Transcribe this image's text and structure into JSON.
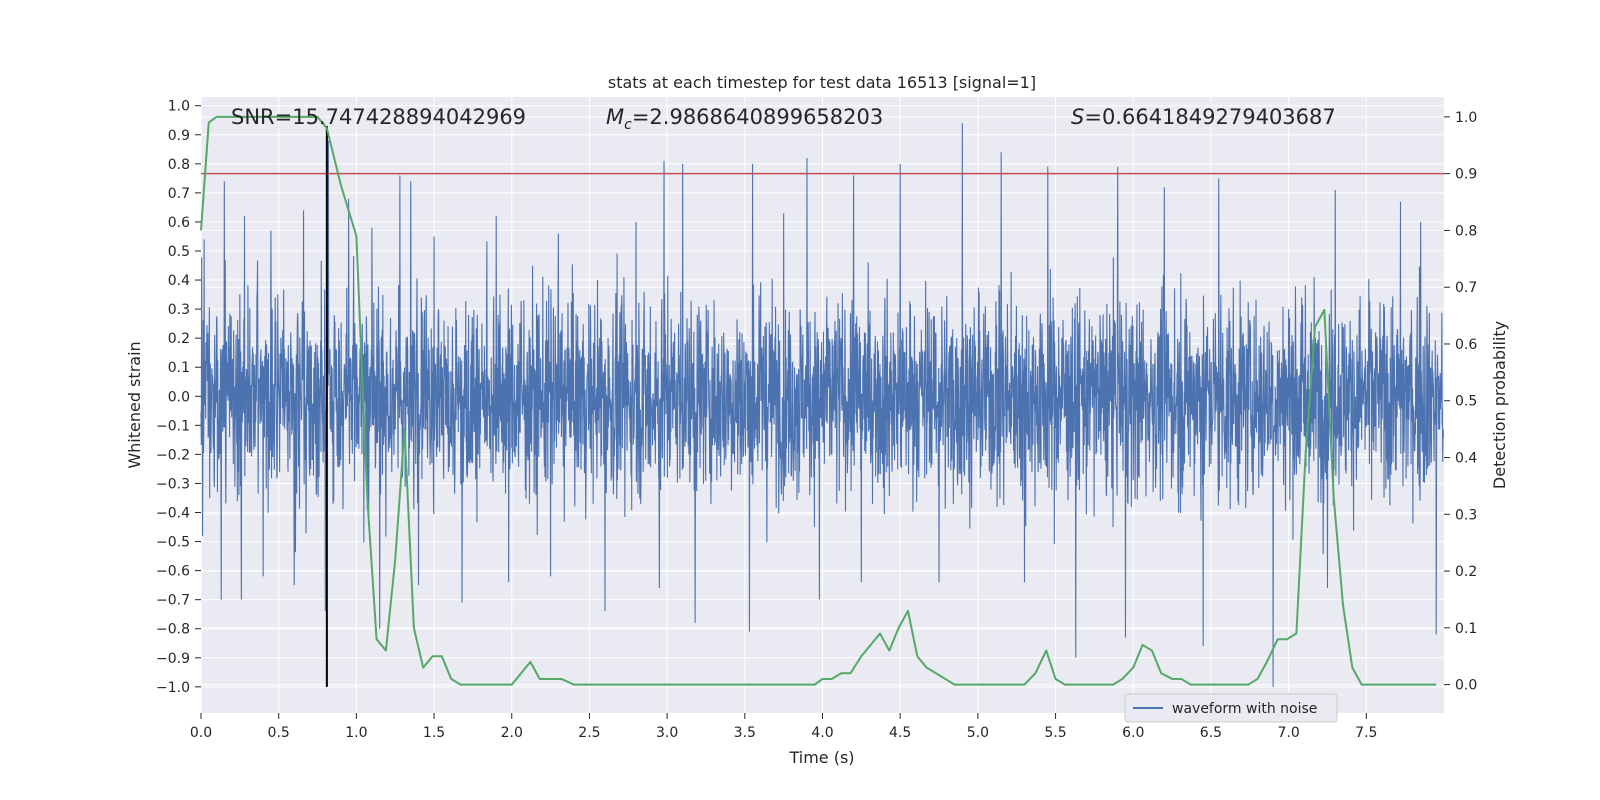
{
  "chart_data": {
    "type": "line",
    "title": "stats at each timestep for test data 16513 [signal=1]",
    "xlabel": "Time (s)",
    "ylabel": "Whitened strain",
    "y2label": "Detection probability",
    "xlim": [
      0,
      8
    ],
    "ylim": [
      -1.09,
      1.03
    ],
    "y2lim": [
      -0.05,
      1.035
    ],
    "xticks": [
      0.0,
      0.5,
      1.0,
      1.5,
      2.0,
      2.5,
      3.0,
      3.5,
      4.0,
      4.5,
      5.0,
      5.5,
      6.0,
      6.5,
      7.0,
      7.5
    ],
    "yticks": [
      1.0,
      0.9,
      0.8,
      0.7,
      0.6,
      0.5,
      0.4,
      0.3,
      0.2,
      0.1,
      0.0,
      -0.1,
      -0.2,
      -0.3,
      -0.4,
      -0.5,
      -0.6,
      -0.7,
      -0.8,
      -0.9,
      -1.0
    ],
    "y2ticks": [
      1.0,
      0.9,
      0.8,
      0.7,
      0.6,
      0.5,
      0.4,
      0.3,
      0.2,
      0.1,
      0.0
    ],
    "grid": true,
    "annotations": {
      "snr": "SNR=15.747428894042969",
      "mc_symbol": "M",
      "mc_sub": "c",
      "mc_value": "=2.9868640899658203",
      "s_symbol": "S",
      "s_value": "=0.6641849279403687"
    },
    "legend": {
      "placement": "lower-right",
      "entries": [
        {
          "label": "waveform with noise",
          "color": "#4c72b0"
        }
      ]
    },
    "threshold": {
      "axis": "y2",
      "value": 0.9,
      "color": "#c44e52"
    },
    "marker_time": 0.81,
    "waveform": {
      "name": "waveform with noise",
      "color": "#4c72b0",
      "note": "dense noise trace; spike peaks listed",
      "peaks": [
        {
          "t": 0.02,
          "v": 0.54
        },
        {
          "t": 0.15,
          "v": 0.74
        },
        {
          "t": 0.28,
          "v": 0.62
        },
        {
          "t": 0.45,
          "v": 0.57
        },
        {
          "t": 0.6,
          "v": 0.77
        },
        {
          "t": 0.66,
          "v": 0.64
        },
        {
          "t": 0.82,
          "v": 0.88
        },
        {
          "t": 0.95,
          "v": 0.68
        },
        {
          "t": 1.1,
          "v": 0.58
        },
        {
          "t": 1.28,
          "v": 0.76
        },
        {
          "t": 1.35,
          "v": 0.74
        },
        {
          "t": 1.5,
          "v": 0.55
        },
        {
          "t": 1.9,
          "v": 0.62
        },
        {
          "t": 2.3,
          "v": 0.56
        },
        {
          "t": 2.8,
          "v": 0.6
        },
        {
          "t": 2.98,
          "v": 0.81
        },
        {
          "t": 3.1,
          "v": 0.8
        },
        {
          "t": 3.55,
          "v": 0.8
        },
        {
          "t": 3.75,
          "v": 0.63
        },
        {
          "t": 3.9,
          "v": 0.82
        },
        {
          "t": 4.2,
          "v": 0.76
        },
        {
          "t": 4.5,
          "v": 0.8
        },
        {
          "t": 4.9,
          "v": 0.94
        },
        {
          "t": 5.15,
          "v": 0.84
        },
        {
          "t": 5.45,
          "v": 0.79
        },
        {
          "t": 5.9,
          "v": 0.79
        },
        {
          "t": 6.2,
          "v": 0.72
        },
        {
          "t": 6.55,
          "v": 0.75
        },
        {
          "t": 6.9,
          "v": 0.74
        },
        {
          "t": 7.3,
          "v": 0.71
        },
        {
          "t": 7.72,
          "v": 0.67
        },
        {
          "t": 7.85,
          "v": 0.6
        }
      ],
      "troughs": [
        {
          "t": 0.01,
          "v": -0.48
        },
        {
          "t": 0.13,
          "v": -0.7
        },
        {
          "t": 0.26,
          "v": -0.7
        },
        {
          "t": 0.4,
          "v": -0.62
        },
        {
          "t": 0.6,
          "v": -0.65
        },
        {
          "t": 0.8,
          "v": -0.74
        },
        {
          "t": 1.15,
          "v": -0.8
        },
        {
          "t": 1.4,
          "v": -0.65
        },
        {
          "t": 1.68,
          "v": -0.71
        },
        {
          "t": 1.98,
          "v": -0.64
        },
        {
          "t": 2.25,
          "v": -0.62
        },
        {
          "t": 2.6,
          "v": -0.74
        },
        {
          "t": 2.95,
          "v": -0.66
        },
        {
          "t": 3.18,
          "v": -0.78
        },
        {
          "t": 3.53,
          "v": -0.81
        },
        {
          "t": 3.98,
          "v": -0.7
        },
        {
          "t": 4.25,
          "v": -0.64
        },
        {
          "t": 4.75,
          "v": -0.64
        },
        {
          "t": 5.3,
          "v": -0.64
        },
        {
          "t": 5.63,
          "v": -0.9
        },
        {
          "t": 5.95,
          "v": -0.83
        },
        {
          "t": 6.45,
          "v": -0.86
        },
        {
          "t": 6.9,
          "v": -1.0
        },
        {
          "t": 7.25,
          "v": -0.66
        },
        {
          "t": 7.95,
          "v": -0.82
        }
      ]
    },
    "probability": {
      "name": "Detection probability",
      "color": "#55a868",
      "axis": "y2",
      "x": [
        0.0,
        0.05,
        0.1,
        0.2,
        0.3,
        0.4,
        0.5,
        0.6,
        0.7,
        0.75,
        0.81,
        0.9,
        1.0,
        1.07,
        1.13,
        1.19,
        1.25,
        1.31,
        1.37,
        1.43,
        1.49,
        1.55,
        1.61,
        1.67,
        1.74,
        1.8,
        1.9,
        2.0,
        2.06,
        2.12,
        2.18,
        2.25,
        2.32,
        2.4,
        2.5,
        2.65,
        2.8,
        3.0,
        3.2,
        3.4,
        3.6,
        3.8,
        3.95,
        4.0,
        4.06,
        4.12,
        4.18,
        4.25,
        4.31,
        4.37,
        4.43,
        4.49,
        4.55,
        4.61,
        4.67,
        4.73,
        4.79,
        4.85,
        4.95,
        5.1,
        5.3,
        5.37,
        5.44,
        5.5,
        5.56,
        5.62,
        5.68,
        5.75,
        5.81,
        5.87,
        5.93,
        6.0,
        6.06,
        6.12,
        6.18,
        6.25,
        6.31,
        6.37,
        6.43,
        6.5,
        6.62,
        6.74,
        6.8,
        6.86,
        6.93,
        6.99,
        7.05,
        7.11,
        7.17,
        7.23,
        7.29,
        7.35,
        7.41,
        7.47,
        7.53,
        7.6,
        7.7,
        7.85,
        7.95
      ],
      "y": [
        0.8,
        0.99,
        1.0,
        1.0,
        1.0,
        1.0,
        1.0,
        1.0,
        1.0,
        1.0,
        0.98,
        0.88,
        0.79,
        0.33,
        0.08,
        0.06,
        0.22,
        0.45,
        0.1,
        0.03,
        0.05,
        0.05,
        0.01,
        0.0,
        0.0,
        0.0,
        0.0,
        0.0,
        0.02,
        0.04,
        0.01,
        0.01,
        0.01,
        0.0,
        0.0,
        0.0,
        0.0,
        0.0,
        0.0,
        0.0,
        0.0,
        0.0,
        0.0,
        0.01,
        0.01,
        0.02,
        0.02,
        0.05,
        0.07,
        0.09,
        0.06,
        0.1,
        0.13,
        0.05,
        0.03,
        0.02,
        0.01,
        0.0,
        0.0,
        0.0,
        0.0,
        0.02,
        0.06,
        0.01,
        0.0,
        0.0,
        0.0,
        0.0,
        0.0,
        0.0,
        0.01,
        0.03,
        0.07,
        0.06,
        0.02,
        0.01,
        0.01,
        0.0,
        0.0,
        0.0,
        0.0,
        0.0,
        0.01,
        0.04,
        0.08,
        0.08,
        0.09,
        0.41,
        0.63,
        0.66,
        0.33,
        0.14,
        0.03,
        0.0,
        0.0,
        0.0,
        0.0,
        0.0,
        0.0
      ]
    }
  }
}
